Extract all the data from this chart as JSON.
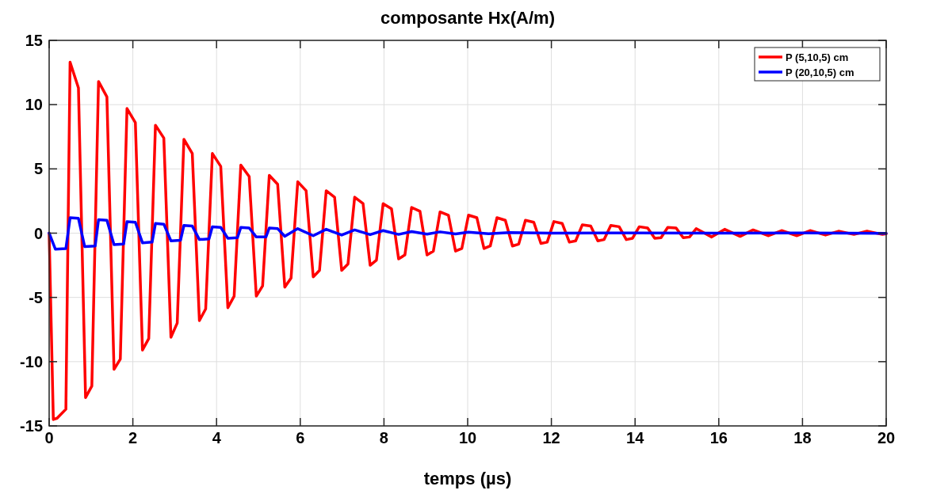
{
  "chart_data": {
    "type": "line",
    "title": "composante Hx(A/m)",
    "xlabel": "temps (µs)",
    "xlim": [
      0,
      20
    ],
    "xticks": [
      0,
      2,
      4,
      6,
      8,
      10,
      12,
      14,
      16,
      18,
      20
    ],
    "ylim": [
      -15,
      15
    ],
    "yticks": [
      -15,
      -10,
      -5,
      0,
      5,
      10,
      15
    ],
    "grid": true,
    "legend": "top right",
    "line_style": "solid",
    "marker": "none",
    "series": [
      {
        "name": "P (5,10,5) cm",
        "color": "#ff0000",
        "x": [
          0,
          0.1,
          0.19,
          0.4,
          0.5,
          0.7,
          0.87,
          1.02,
          1.18,
          1.38,
          1.55,
          1.7,
          1.86,
          2.06,
          2.23,
          2.38,
          2.54,
          2.74,
          2.91,
          3.06,
          3.22,
          3.42,
          3.59,
          3.74,
          3.9,
          4.1,
          4.27,
          4.42,
          4.58,
          4.78,
          4.95,
          5.1,
          5.26,
          5.46,
          5.63,
          5.78,
          5.94,
          6.14,
          6.31,
          6.46,
          6.62,
          6.82,
          6.99,
          7.14,
          7.3,
          7.5,
          7.67,
          7.82,
          7.98,
          8.18,
          8.35,
          8.5,
          8.66,
          8.86,
          9.03,
          9.18,
          9.34,
          9.54,
          9.71,
          9.86,
          10.02,
          10.22,
          10.39,
          10.54,
          10.7,
          10.9,
          11.07,
          11.22,
          11.38,
          11.58,
          11.75,
          11.9,
          12.06,
          12.26,
          12.43,
          12.58,
          12.74,
          12.94,
          13.11,
          13.26,
          13.42,
          13.62,
          13.79,
          13.94,
          14.1,
          14.3,
          14.47,
          14.62,
          14.78,
          14.98,
          15.15,
          15.3,
          15.46,
          15.83,
          16.14,
          16.51,
          16.82,
          17.19,
          17.5,
          17.87,
          18.18,
          18.55,
          18.86,
          19.23,
          19.54,
          19.91,
          20
        ],
        "values": [
          0,
          -14.5,
          -14.4,
          -13.7,
          13.3,
          11.3,
          -12.8,
          -11.9,
          11.8,
          10.6,
          -10.6,
          -9.8,
          9.7,
          8.6,
          -9.1,
          -8.2,
          8.4,
          7.4,
          -8.1,
          -7.0,
          7.3,
          6.2,
          -6.8,
          -5.9,
          6.2,
          5.2,
          -5.8,
          -4.9,
          5.3,
          4.4,
          -4.9,
          -4.1,
          4.5,
          3.8,
          -4.2,
          -3.5,
          4.0,
          3.3,
          -3.4,
          -2.9,
          3.3,
          2.8,
          -2.9,
          -2.4,
          2.8,
          2.3,
          -2.5,
          -2.1,
          2.3,
          1.9,
          -2.0,
          -1.7,
          2.0,
          1.7,
          -1.7,
          -1.4,
          1.65,
          1.4,
          -1.4,
          -1.2,
          1.4,
          1.2,
          -1.2,
          -1.0,
          1.2,
          1.0,
          -1.0,
          -0.85,
          1.0,
          0.85,
          -0.8,
          -0.7,
          0.9,
          0.75,
          -0.7,
          -0.6,
          0.65,
          0.55,
          -0.6,
          -0.5,
          0.6,
          0.5,
          -0.5,
          -0.4,
          0.5,
          0.4,
          -0.4,
          -0.35,
          0.45,
          0.4,
          -0.35,
          -0.3,
          0.35,
          -0.3,
          0.3,
          -0.25,
          0.25,
          -0.2,
          0.2,
          -0.2,
          0.2,
          -0.15,
          0.15,
          -0.1,
          0.15,
          -0.1,
          -0.05
        ]
      },
      {
        "name": "P (20,10,5) cm",
        "color": "#0000ff",
        "x": [
          0,
          0.15,
          0.4,
          0.5,
          0.7,
          0.85,
          1.1,
          1.18,
          1.38,
          1.55,
          1.78,
          1.86,
          2.06,
          2.23,
          2.46,
          2.54,
          2.74,
          2.91,
          3.14,
          3.22,
          3.42,
          3.59,
          3.82,
          3.9,
          4.1,
          4.27,
          4.5,
          4.58,
          4.78,
          4.95,
          5.18,
          5.26,
          5.46,
          5.63,
          5.94,
          6.31,
          6.62,
          6.99,
          7.3,
          7.67,
          7.98,
          8.35,
          8.66,
          9.03,
          9.34,
          9.71,
          10.02,
          10.5,
          11,
          12,
          14,
          16,
          18,
          20
        ],
        "values": [
          0,
          -1.25,
          -1.2,
          1.2,
          1.15,
          -1.05,
          -1.0,
          1.05,
          1.0,
          -0.9,
          -0.85,
          0.9,
          0.85,
          -0.75,
          -0.7,
          0.75,
          0.7,
          -0.6,
          -0.55,
          0.6,
          0.55,
          -0.5,
          -0.45,
          0.5,
          0.45,
          -0.4,
          -0.35,
          0.45,
          0.4,
          -0.3,
          -0.3,
          0.4,
          0.35,
          -0.25,
          0.35,
          -0.2,
          0.3,
          -0.15,
          0.25,
          -0.12,
          0.2,
          -0.1,
          0.12,
          -0.08,
          0.1,
          -0.06,
          0.08,
          -0.05,
          0.05,
          0,
          0.02,
          0,
          0.02,
          -0.02
        ]
      }
    ]
  }
}
